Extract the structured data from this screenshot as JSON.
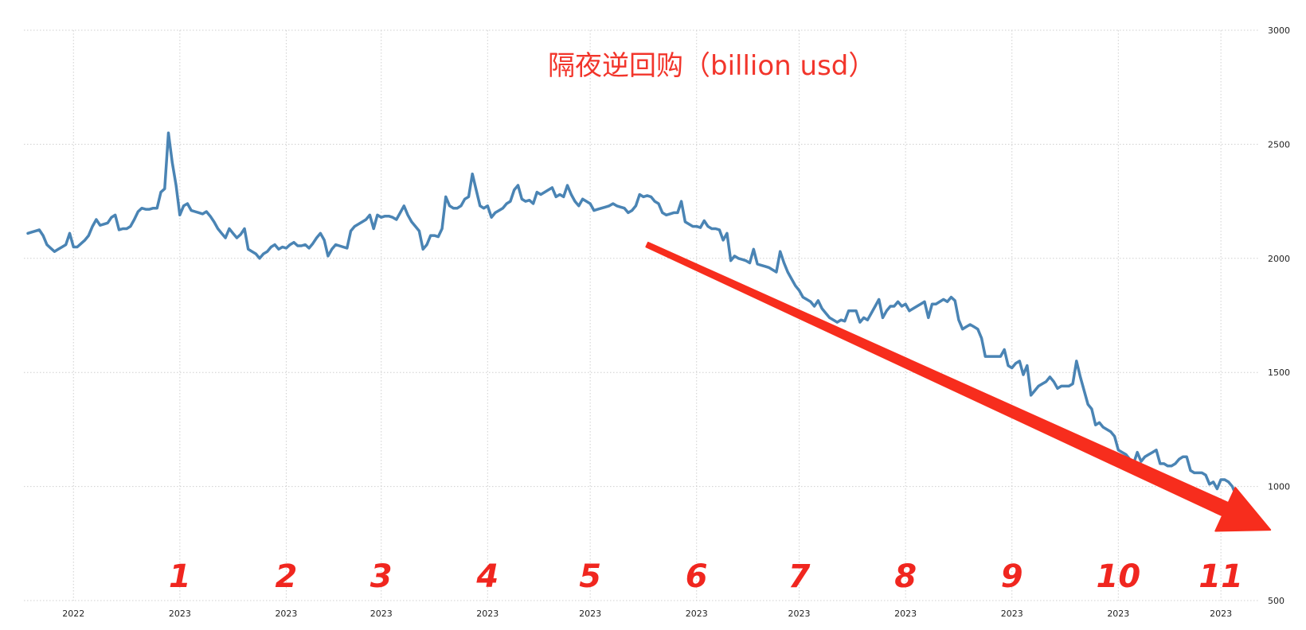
{
  "chart_data": {
    "type": "line",
    "title": "隔夜逆回购（billion usd）",
    "xlabel": "",
    "ylabel": "",
    "ylim": [
      500,
      3000
    ],
    "y_ticks": [
      "500",
      "1000",
      "1500",
      "2000",
      "2500",
      "3000"
    ],
    "y_axis_side": "right",
    "grid": "dotted",
    "x_ticks": [
      {
        "label": "2022",
        "index": 12
      },
      {
        "label": "2023",
        "index": 40
      },
      {
        "label": "2023",
        "index": 68
      },
      {
        "label": "2023",
        "index": 93
      },
      {
        "label": "2023",
        "index": 121
      },
      {
        "label": "2023",
        "index": 148
      },
      {
        "label": "2023",
        "index": 176
      },
      {
        "label": "2023",
        "index": 203
      },
      {
        "label": "2023",
        "index": 231
      },
      {
        "label": "2023",
        "index": 259
      },
      {
        "label": "2023",
        "index": 287
      },
      {
        "label": "2023",
        "index": 314
      }
    ],
    "annotations": {
      "month_numbers": [
        {
          "text": "1",
          "index": 40
        },
        {
          "text": "2",
          "index": 68
        },
        {
          "text": "3",
          "index": 93
        },
        {
          "text": "4",
          "index": 121
        },
        {
          "text": "5",
          "index": 148
        },
        {
          "text": "6",
          "index": 176
        },
        {
          "text": "7",
          "index": 203
        },
        {
          "text": "8",
          "index": 231
        },
        {
          "text": "9",
          "index": 259
        },
        {
          "text": "10",
          "index": 287
        },
        {
          "text": "11",
          "index": 314
        }
      ],
      "trend_arrow": {
        "from": {
          "index": 163,
          "value": 2060
        },
        "to": {
          "index": 327,
          "value": 810
        }
      }
    },
    "series": [
      {
        "values": [
          2110,
          2115,
          2120,
          2125,
          2100,
          2060,
          2045,
          2030,
          2040,
          2050,
          2060,
          2110,
          2050,
          2050,
          2065,
          2080,
          2100,
          2140,
          2170,
          2145,
          2150,
          2155,
          2180,
          2190,
          2125,
          2130,
          2130,
          2140,
          2170,
          2205,
          2220,
          2215,
          2215,
          2220,
          2220,
          2290,
          2305,
          2550,
          2420,
          2320,
          2190,
          2230,
          2240,
          2210,
          2205,
          2200,
          2195,
          2205,
          2185,
          2160,
          2130,
          2110,
          2090,
          2130,
          2110,
          2090,
          2105,
          2130,
          2040,
          2030,
          2020,
          2000,
          2020,
          2030,
          2050,
          2060,
          2040,
          2050,
          2045,
          2060,
          2070,
          2055,
          2055,
          2060,
          2045,
          2065,
          2090,
          2110,
          2080,
          2010,
          2040,
          2060,
          2055,
          2050,
          2045,
          2120,
          2140,
          2150,
          2160,
          2170,
          2190,
          2130,
          2190,
          2180,
          2185,
          2185,
          2180,
          2170,
          2200,
          2230,
          2190,
          2160,
          2140,
          2120,
          2040,
          2060,
          2100,
          2100,
          2095,
          2130,
          2270,
          2230,
          2220,
          2220,
          2230,
          2260,
          2270,
          2370,
          2300,
          2230,
          2220,
          2230,
          2180,
          2200,
          2210,
          2220,
          2240,
          2250,
          2300,
          2320,
          2260,
          2250,
          2255,
          2240,
          2290,
          2280,
          2290,
          2300,
          2310,
          2270,
          2280,
          2270,
          2320,
          2280,
          2250,
          2230,
          2260,
          2250,
          2240,
          2210,
          2215,
          2220,
          2225,
          2230,
          2240,
          2230,
          2225,
          2220,
          2200,
          2210,
          2230,
          2280,
          2270,
          2275,
          2270,
          2250,
          2240,
          2200,
          2190,
          2195,
          2200,
          2200,
          2250,
          2160,
          2150,
          2140,
          2140,
          2135,
          2165,
          2140,
          2130,
          2130,
          2125,
          2080,
          2110,
          1990,
          2010,
          2000,
          1995,
          1990,
          1980,
          2040,
          1975,
          1970,
          1965,
          1960,
          1950,
          1940,
          2030,
          1980,
          1940,
          1910,
          1880,
          1860,
          1830,
          1820,
          1810,
          1790,
          1815,
          1780,
          1760,
          1740,
          1730,
          1720,
          1730,
          1725,
          1770,
          1770,
          1770,
          1720,
          1740,
          1730,
          1760,
          1790,
          1820,
          1740,
          1770,
          1790,
          1790,
          1810,
          1790,
          1800,
          1770,
          1780,
          1790,
          1800,
          1810,
          1740,
          1800,
          1800,
          1810,
          1820,
          1810,
          1830,
          1815,
          1730,
          1690,
          1700,
          1710,
          1700,
          1690,
          1650,
          1570,
          1570,
          1570,
          1570,
          1570,
          1600,
          1530,
          1520,
          1540,
          1550,
          1490,
          1530,
          1400,
          1420,
          1440,
          1450,
          1460,
          1480,
          1460,
          1430,
          1440,
          1440,
          1440,
          1450,
          1550,
          1480,
          1420,
          1360,
          1340,
          1270,
          1280,
          1260,
          1250,
          1240,
          1220,
          1160,
          1150,
          1140,
          1120,
          1100,
          1150,
          1110,
          1130,
          1140,
          1150,
          1160,
          1100,
          1100,
          1090,
          1090,
          1100,
          1120,
          1130,
          1130,
          1070,
          1060,
          1060,
          1060,
          1050,
          1010,
          1020,
          990,
          1030,
          1030,
          1020,
          1000,
          960,
          920
        ]
      }
    ]
  }
}
